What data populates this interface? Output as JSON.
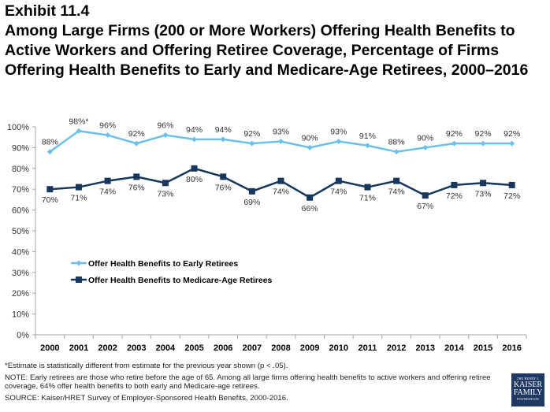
{
  "header": {
    "exhibit": "Exhibit 11.4",
    "title": "Among Large Firms (200 or More Workers) Offering Health Benefits to Active Workers and Offering Retiree Coverage, Percentage of Firms Offering Health Benefits to Early and Medicare-Age Retirees, 2000–2016"
  },
  "chart_data": {
    "type": "line",
    "title": "Among Large Firms (200 or More Workers) Offering Health Benefits to Active Workers and Offering Retiree Coverage, Percentage of Firms Offering Health Benefits to Early and Medicare-Age Retirees, 2000–2016",
    "xlabel": "",
    "ylabel": "",
    "categories": [
      "2000",
      "2001",
      "2002",
      "2003",
      "2004",
      "2005",
      "2006",
      "2007",
      "2008",
      "2009",
      "2010",
      "2011",
      "2012",
      "2013",
      "2014",
      "2015",
      "2016"
    ],
    "ylim": [
      0,
      100
    ],
    "yticks": [
      "0%",
      "10%",
      "20%",
      "30%",
      "40%",
      "50%",
      "60%",
      "70%",
      "80%",
      "90%",
      "100%"
    ],
    "grid": false,
    "legend_position": "center-left",
    "series": [
      {
        "name": "Offer Health Benefits to Early Retirees",
        "color": "#6cc0eb",
        "marker": "diamond",
        "values": [
          88,
          98,
          96,
          92,
          96,
          94,
          94,
          92,
          93,
          90,
          93,
          91,
          88,
          90,
          92,
          92,
          92
        ],
        "labels": [
          "88%",
          "98%*",
          "96%",
          "92%",
          "96%",
          "94%",
          "94%",
          "92%",
          "93%",
          "90%",
          "93%",
          "91%",
          "88%",
          "90%",
          "92%",
          "92%",
          "92%"
        ],
        "label_position": "above"
      },
      {
        "name": "Offer Health Benefits to Medicare-Age Retirees",
        "color": "#17375e",
        "marker": "square",
        "values": [
          70,
          71,
          74,
          76,
          73,
          80,
          76,
          69,
          74,
          66,
          74,
          71,
          74,
          67,
          72,
          73,
          72
        ],
        "labels": [
          "70%",
          "71%",
          "74%",
          "76%",
          "73%",
          "80%",
          "76%",
          "69%",
          "74%",
          "66%",
          "74%",
          "71%",
          "74%",
          "67%",
          "72%",
          "73%",
          "72%"
        ],
        "label_position": "below"
      }
    ]
  },
  "notes": {
    "footnote": "*Estimate is statistically different from estimate for the previous year shown (p < .05).",
    "note": "NOTE:  Early retirees are those who retire before the age of 65. Among all large firms offering health benefits to active workers and offering retiree coverage, 64% offer health benefits to both early and Medicare-age retirees.",
    "source": "SOURCE:  Kaiser/HRET Survey of Employer-Sponsored Health Benefits, 2000-2016."
  },
  "logo": {
    "line1": "THE HENRY J.",
    "line2": "KAISER",
    "line3": "FAMILY",
    "line4": "FOUNDATION"
  }
}
